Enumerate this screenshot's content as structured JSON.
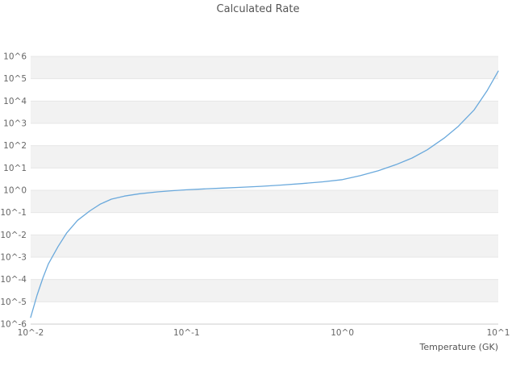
{
  "chart_data": {
    "type": "line",
    "title": "Calculated Rate",
    "xlabel": "Temperature (GK)",
    "ylabel": "",
    "x_scale": "log",
    "y_scale": "log",
    "xlim": [
      0.01,
      10
    ],
    "ylim": [
      1e-06,
      1000000.0
    ],
    "grid": "horizontal-decade-bands",
    "legend": "none",
    "x_ticks": [
      {
        "value": 0.01,
        "label": "10^-2"
      },
      {
        "value": 0.1,
        "label": "10^-1"
      },
      {
        "value": 1,
        "label": "10^0"
      },
      {
        "value": 10,
        "label": "10^1"
      }
    ],
    "y_ticks": [
      {
        "value": 1000000.0,
        "label": "10^6"
      },
      {
        "value": 100000.0,
        "label": "10^5"
      },
      {
        "value": 10000.0,
        "label": "10^4"
      },
      {
        "value": 1000.0,
        "label": "10^3"
      },
      {
        "value": 100.0,
        "label": "10^2"
      },
      {
        "value": 10.0,
        "label": "10^1"
      },
      {
        "value": 1.0,
        "label": "10^0"
      },
      {
        "value": 0.1,
        "label": "10^-1"
      },
      {
        "value": 0.01,
        "label": "10^-2"
      },
      {
        "value": 0.001,
        "label": "10^-3"
      },
      {
        "value": 0.0001,
        "label": "10^-4"
      },
      {
        "value": 1e-05,
        "label": "10^-5"
      },
      {
        "value": 1e-06,
        "label": "10^-6"
      }
    ],
    "series": [
      {
        "name": "calculated-rate",
        "color": "#6aa9dc",
        "x": [
          0.01,
          0.011,
          0.012,
          0.013,
          0.015,
          0.017,
          0.02,
          0.024,
          0.028,
          0.033,
          0.04,
          0.05,
          0.065,
          0.08,
          0.1,
          0.13,
          0.17,
          0.22,
          0.3,
          0.4,
          0.55,
          0.75,
          1.0,
          1.3,
          1.7,
          2.2,
          2.8,
          3.5,
          4.5,
          5.5,
          7.0,
          8.5,
          10.0
        ],
        "y": [
          2e-06,
          2e-05,
          0.00012,
          0.0005,
          0.003,
          0.012,
          0.045,
          0.12,
          0.24,
          0.4,
          0.55,
          0.7,
          0.85,
          0.95,
          1.05,
          1.15,
          1.25,
          1.35,
          1.5,
          1.7,
          2.0,
          2.4,
          3.0,
          4.5,
          7.5,
          14,
          28,
          65,
          220,
          700,
          4000,
          30000,
          220000
        ]
      }
    ],
    "colors": {
      "band_fill": "#f2f2f2",
      "decade_line": "#e7e7e7",
      "axis_line": "#cccccc",
      "tick_text": "#666666",
      "title_text": "#555555"
    }
  }
}
